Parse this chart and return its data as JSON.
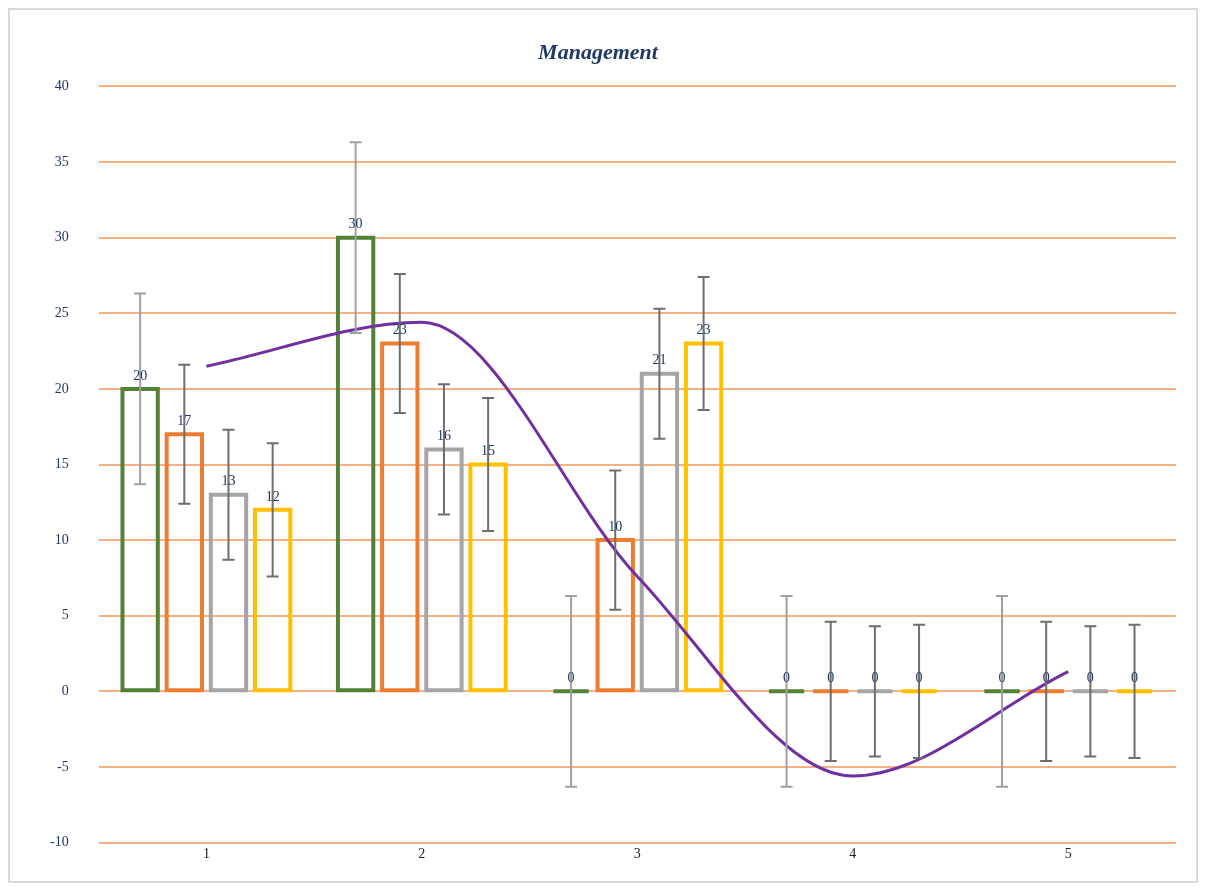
{
  "chart_data": {
    "type": "bar",
    "title": "Management",
    "categories": [
      "1",
      "2",
      "3",
      "4",
      "5"
    ],
    "series": [
      {
        "color": "#548235",
        "values": [
          20,
          30,
          0,
          0,
          0
        ],
        "value_labels": [
          "20",
          "30",
          "0",
          "0",
          "0"
        ],
        "errors": [
          6.3,
          6.3,
          6.3,
          6.3,
          6.3
        ]
      },
      {
        "color": "#ed7d31",
        "values": [
          17,
          23,
          10,
          0,
          0
        ],
        "value_labels": [
          "17",
          "23",
          "10",
          "0",
          "0"
        ],
        "errors": [
          4.6,
          4.6,
          4.6,
          4.6,
          4.6
        ]
      },
      {
        "color": "#a5a5a5",
        "values": [
          13,
          16,
          21,
          0,
          0
        ],
        "value_labels": [
          "13",
          "16",
          "21",
          "0",
          "0"
        ],
        "errors": [
          4.3,
          4.3,
          4.3,
          4.3,
          4.3
        ]
      },
      {
        "color": "#ffc000",
        "values": [
          12,
          15,
          23,
          0,
          0
        ],
        "value_labels": [
          "12",
          "15",
          "23",
          "0",
          "0"
        ],
        "errors": [
          4.4,
          4.4,
          4.4,
          4.4,
          4.4
        ]
      },
      {
        "type": "line",
        "color": "#7030a0",
        "values": [
          21.5,
          24.4,
          7.6,
          -5.6,
          1.3
        ]
      }
    ],
    "ylim": [
      -10,
      40
    ],
    "yticks": [
      -10,
      -5,
      0,
      5,
      10,
      15,
      20,
      25,
      30,
      35,
      40
    ],
    "grid": "y",
    "legend": false
  }
}
